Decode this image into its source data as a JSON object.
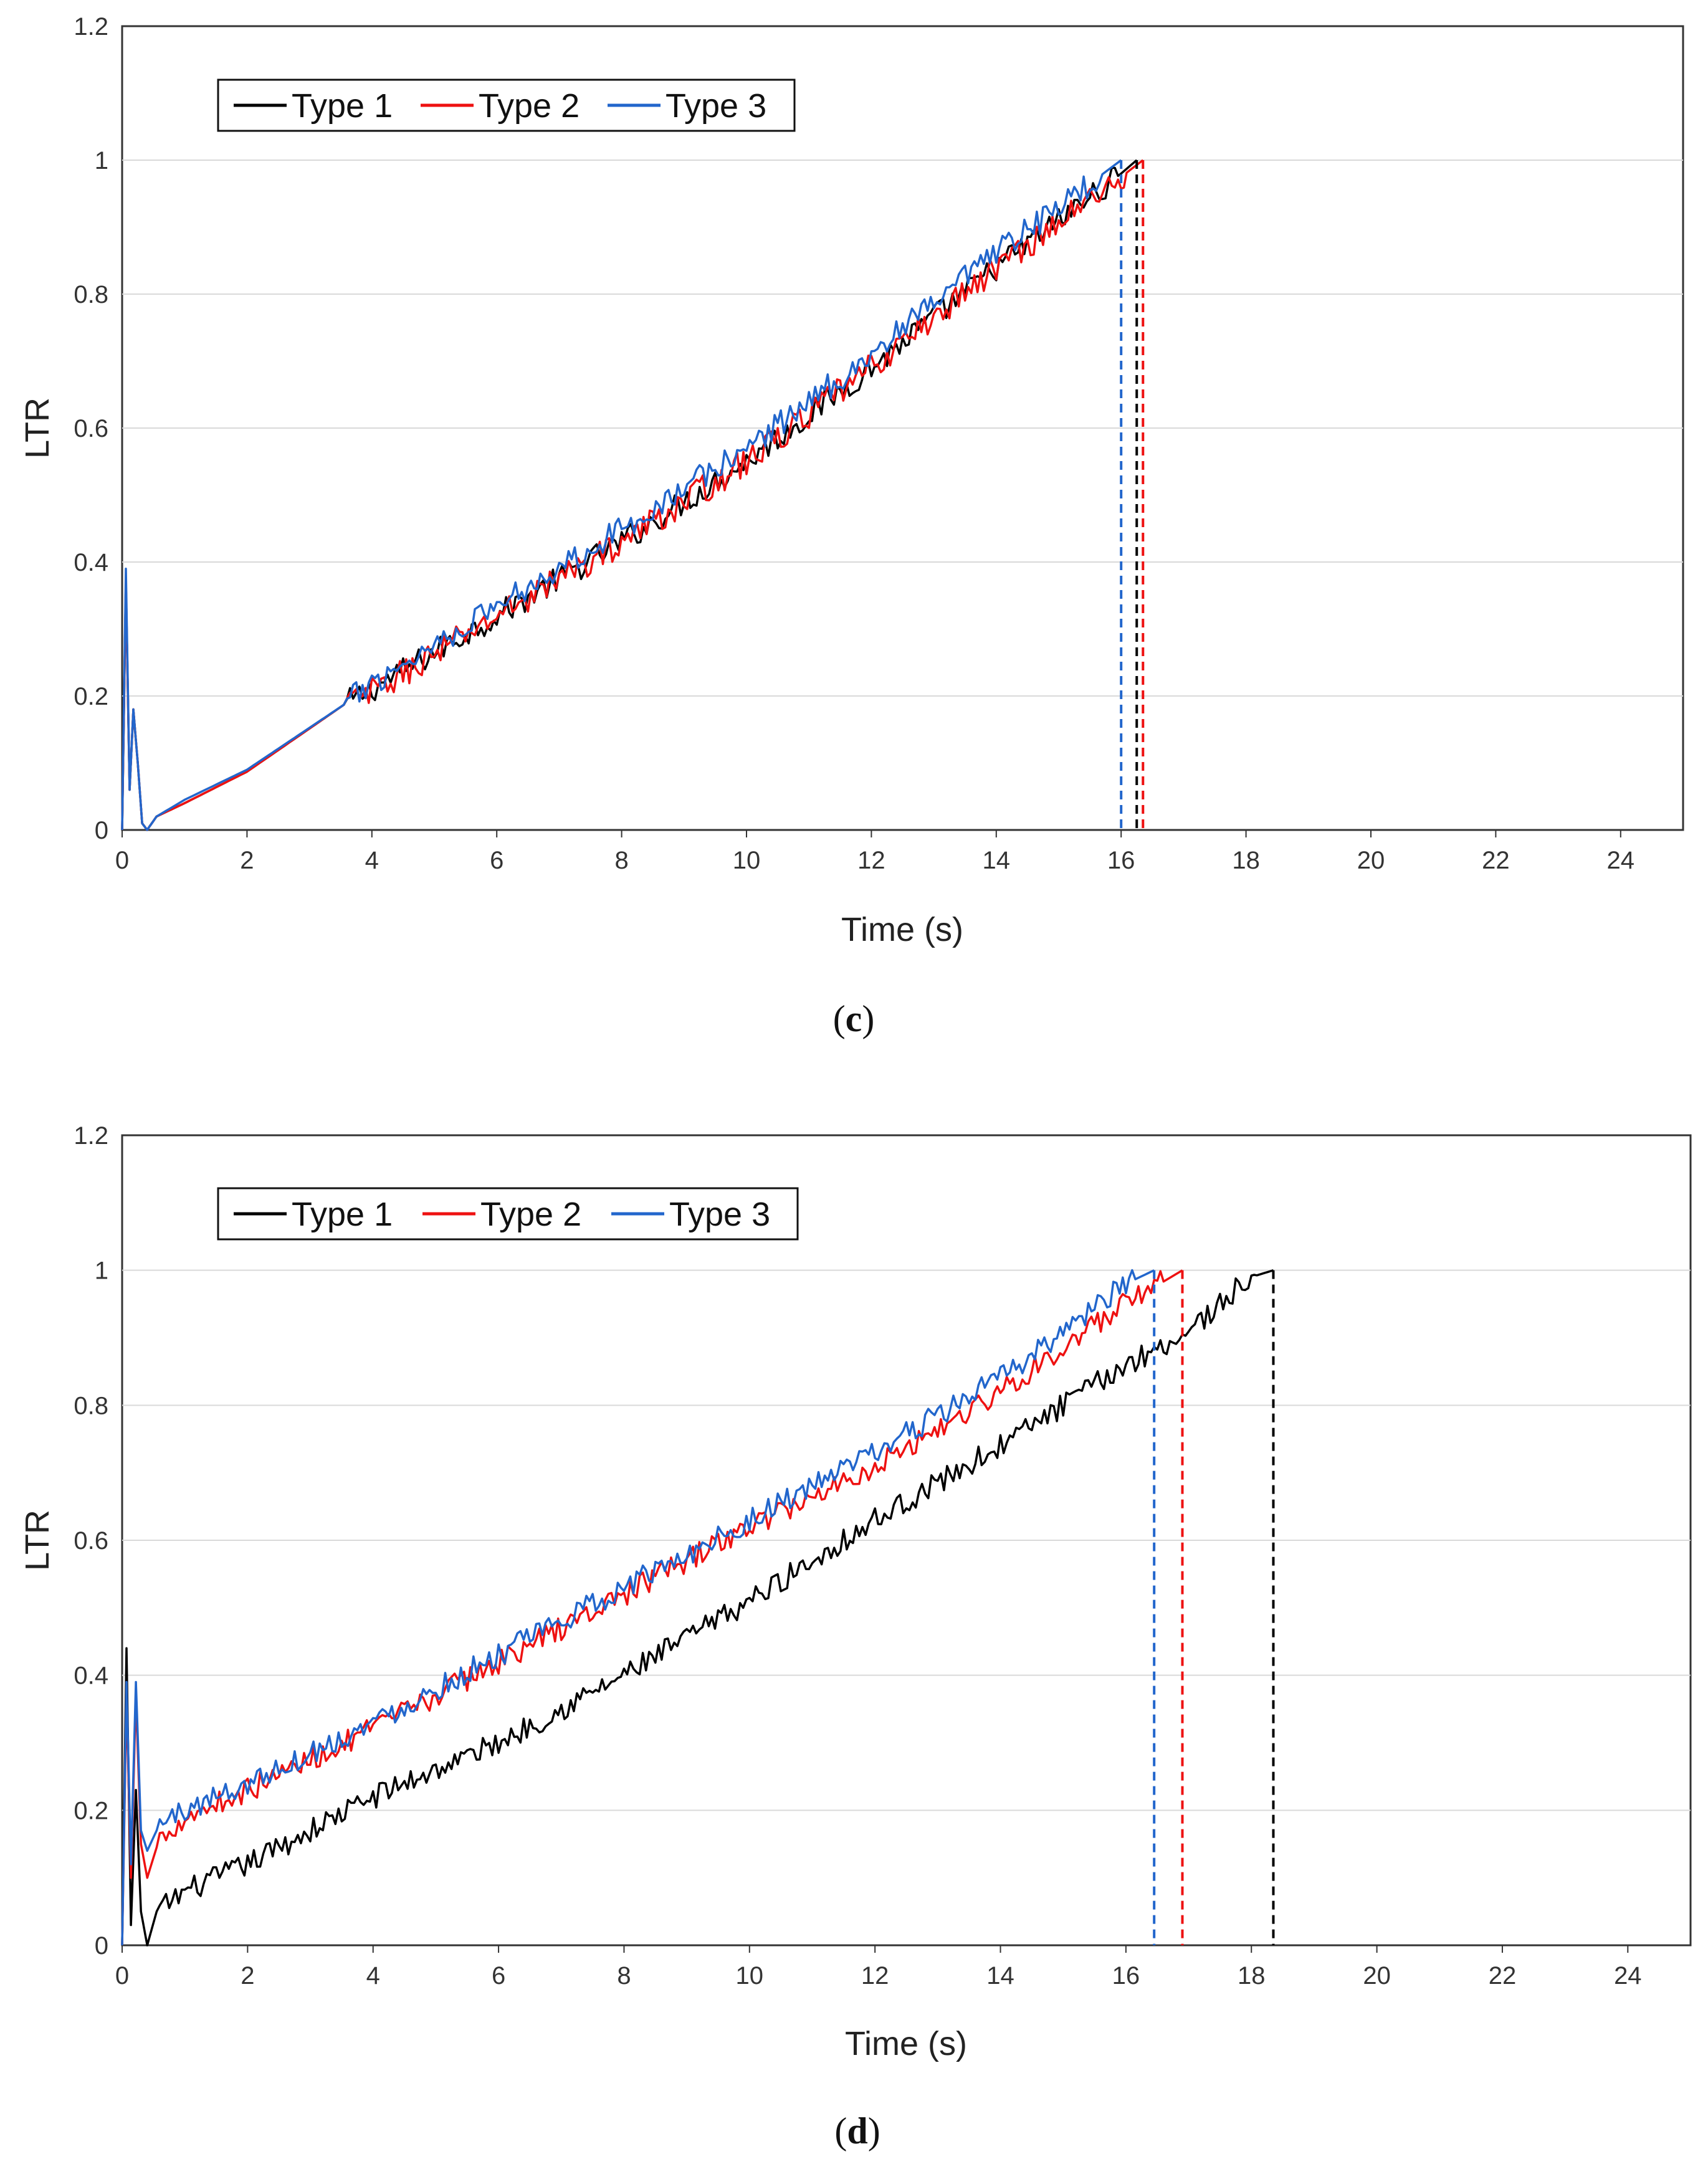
{
  "chart_data": [
    {
      "type": "line",
      "panel_label": "c",
      "xlabel": "Time (s)",
      "ylabel": "LTR",
      "xlim": [
        0,
        25
      ],
      "ylim": [
        0,
        1.2
      ],
      "x_ticks": [
        0,
        2,
        4,
        6,
        8,
        10,
        12,
        14,
        16,
        18,
        20,
        22,
        24
      ],
      "y_ticks": [
        0,
        0.2,
        0.4,
        0.6,
        0.8,
        1,
        1.2
      ],
      "y_tick_labels": [
        "0",
        "0.2",
        "0.4",
        "0.6",
        "0.8",
        "1",
        "1.2"
      ],
      "grid": "horizontal",
      "legend_position": "top-left",
      "series": [
        {
          "name": "Type 1",
          "color": "#000000",
          "end_time": 16.25,
          "noise": 0.02,
          "noise_start": 3.6,
          "points": [
            [
              0,
              0
            ],
            [
              0.06,
              0.37
            ],
            [
              0.12,
              0.06
            ],
            [
              0.18,
              0.18
            ],
            [
              0.25,
              0.1
            ],
            [
              0.32,
              0.01
            ],
            [
              0.4,
              0.0
            ],
            [
              0.55,
              0.02
            ],
            [
              1,
              0.04
            ],
            [
              2,
              0.087
            ],
            [
              3.6,
              0.19
            ],
            [
              4,
              0.21
            ],
            [
              6,
              0.32
            ],
            [
              8,
              0.43
            ],
            [
              10,
              0.55
            ],
            [
              12,
              0.69
            ],
            [
              14,
              0.84
            ],
            [
              16,
              0.98
            ],
            [
              16.25,
              1.0
            ]
          ]
        },
        {
          "name": "Type 2",
          "color": "#ee1111",
          "end_time": 16.35,
          "noise": 0.022,
          "noise_start": 3.6,
          "points": [
            [
              0,
              0
            ],
            [
              0.06,
              0.37
            ],
            [
              0.12,
              0.06
            ],
            [
              0.18,
              0.18
            ],
            [
              0.25,
              0.1
            ],
            [
              0.32,
              0.01
            ],
            [
              0.4,
              0.0
            ],
            [
              0.55,
              0.02
            ],
            [
              1,
              0.04
            ],
            [
              2,
              0.087
            ],
            [
              3.6,
              0.19
            ],
            [
              4,
              0.205
            ],
            [
              6,
              0.32
            ],
            [
              8,
              0.43
            ],
            [
              10,
              0.55
            ],
            [
              12,
              0.69
            ],
            [
              14,
              0.84
            ],
            [
              16,
              0.975
            ],
            [
              16.35,
              1.0
            ]
          ]
        },
        {
          "name": "Type 3",
          "color": "#2266cc",
          "end_time": 16.0,
          "noise": 0.02,
          "noise_start": 3.6,
          "points": [
            [
              0,
              0
            ],
            [
              0.06,
              0.39
            ],
            [
              0.12,
              0.06
            ],
            [
              0.18,
              0.18
            ],
            [
              0.25,
              0.1
            ],
            [
              0.32,
              0.01
            ],
            [
              0.4,
              0.0
            ],
            [
              0.55,
              0.02
            ],
            [
              1,
              0.045
            ],
            [
              2,
              0.09
            ],
            [
              3.6,
              0.19
            ],
            [
              4,
              0.22
            ],
            [
              6,
              0.335
            ],
            [
              8,
              0.45
            ],
            [
              10,
              0.57
            ],
            [
              12,
              0.71
            ],
            [
              14,
              0.86
            ],
            [
              16,
              1.0
            ]
          ]
        }
      ]
    },
    {
      "type": "line",
      "panel_label": "d",
      "xlabel": "Time (s)",
      "ylabel": "LTR",
      "xlim": [
        0,
        25
      ],
      "ylim": [
        0,
        1.2
      ],
      "x_ticks": [
        0,
        2,
        4,
        6,
        8,
        10,
        12,
        14,
        16,
        18,
        20,
        22,
        24
      ],
      "y_ticks": [
        0,
        0.2,
        0.4,
        0.6,
        0.8,
        1,
        1.2
      ],
      "y_tick_labels": [
        "0",
        "0.2",
        "0.4",
        "0.6",
        "0.8",
        "1",
        "1.2"
      ],
      "grid": "horizontal",
      "legend_position": "top-left",
      "series": [
        {
          "name": "Type 1",
          "color": "#000000",
          "end_time": 18.35,
          "noise": 0.018,
          "noise_start": 0.6,
          "points": [
            [
              0,
              0
            ],
            [
              0.07,
              0.44
            ],
            [
              0.14,
              0.03
            ],
            [
              0.22,
              0.23
            ],
            [
              0.3,
              0.05
            ],
            [
              0.4,
              0.0
            ],
            [
              0.55,
              0.05
            ],
            [
              1,
              0.08
            ],
            [
              2,
              0.12
            ],
            [
              4,
              0.22
            ],
            [
              6,
              0.3
            ],
            [
              8,
              0.4
            ],
            [
              10,
              0.51
            ],
            [
              12,
              0.63
            ],
            [
              14,
              0.74
            ],
            [
              16,
              0.86
            ],
            [
              17,
              0.91
            ],
            [
              18,
              0.99
            ],
            [
              18.35,
              1.0
            ]
          ]
        },
        {
          "name": "Type 2",
          "color": "#ee1111",
          "end_time": 16.9,
          "noise": 0.018,
          "noise_start": 0.6,
          "points": [
            [
              0,
              0
            ],
            [
              0.07,
              0.37
            ],
            [
              0.14,
              0.1
            ],
            [
              0.22,
              0.37
            ],
            [
              0.3,
              0.15
            ],
            [
              0.4,
              0.1
            ],
            [
              0.6,
              0.16
            ],
            [
              1,
              0.19
            ],
            [
              2,
              0.23
            ],
            [
              4,
              0.32
            ],
            [
              6,
              0.42
            ],
            [
              8,
              0.52
            ],
            [
              10,
              0.62
            ],
            [
              12,
              0.71
            ],
            [
              14,
              0.82
            ],
            [
              16,
              0.95
            ],
            [
              16.9,
              1.0
            ]
          ]
        },
        {
          "name": "Type 3",
          "color": "#2266cc",
          "end_time": 16.45,
          "noise": 0.018,
          "noise_start": 0.6,
          "points": [
            [
              0,
              0
            ],
            [
              0.07,
              0.39
            ],
            [
              0.14,
              0.12
            ],
            [
              0.22,
              0.39
            ],
            [
              0.3,
              0.17
            ],
            [
              0.4,
              0.14
            ],
            [
              0.6,
              0.18
            ],
            [
              1,
              0.2
            ],
            [
              2,
              0.24
            ],
            [
              4,
              0.33
            ],
            [
              6,
              0.43
            ],
            [
              8,
              0.53
            ],
            [
              10,
              0.63
            ],
            [
              12,
              0.73
            ],
            [
              14,
              0.84
            ],
            [
              16,
              0.98
            ],
            [
              16.45,
              1.0
            ]
          ]
        }
      ]
    }
  ]
}
